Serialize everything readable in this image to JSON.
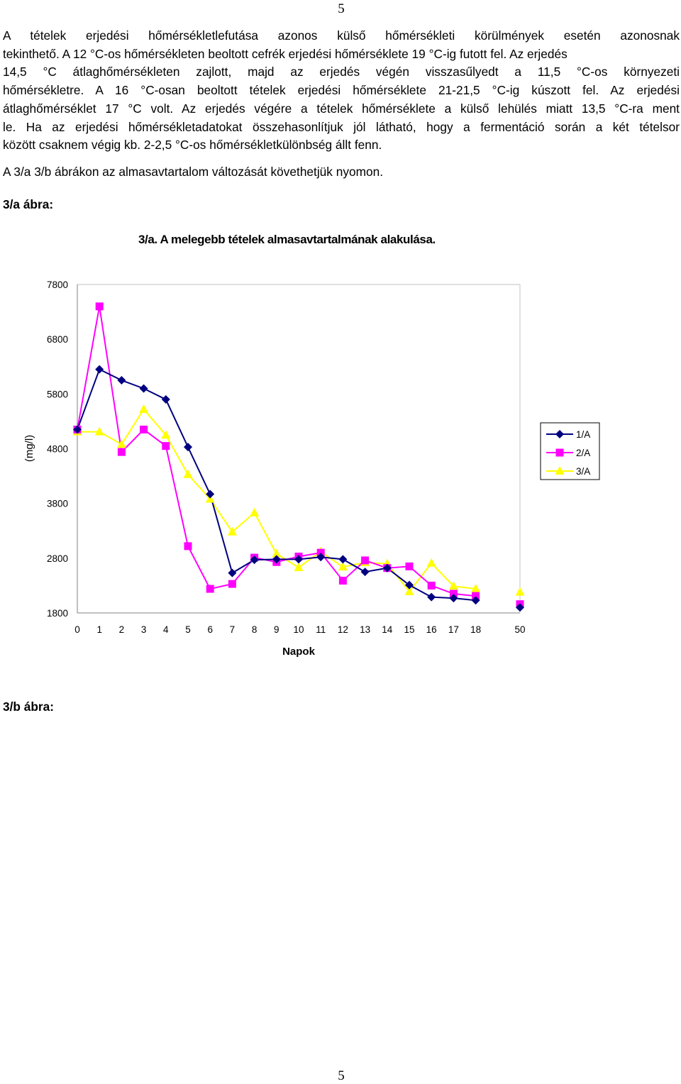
{
  "page": {
    "number_top": "5",
    "number_bottom": "5"
  },
  "paragraph1": {
    "lines": [
      "A tételek erjedési hőmérsékletlefutása azonos külső hőmérsékleti körülmények esetén azonosnak",
      "tekinthető. A 12 °C-os hőmérsékleten beoltott cefrék erjedési hőmérséklete 19 °C-ig futott fel. Az erjedés",
      "14,5 °C átlaghőmérsékleten zajlott, majd az erjedés végén visszasűlyedt a 11,5 °C-os környezeti",
      "hőmérsékletre. A 16 °C-osan beoltott tételek erjedési hőmérséklete 21-21,5 °C-ig kúszott fel. Az erjedési",
      "átlaghőmérséklet 17 °C volt. Az erjedés végére a tételek hőmérséklete a külső lehülés miatt 13,5 °C-ra ment",
      "le. Ha az erjedési hőmérsékletadatokat összehasonlítjuk jól látható, hogy a fermentáció során a két tételsor",
      "között csaknem végig kb. 2-2,5 °C-os hőmérsékletkülönbség állt fenn."
    ]
  },
  "paragraph2": "A 3/a 3/b ábrákon az almasavtartalom változását követhetjük nyomon.",
  "heading_3a": "3/a ábra:",
  "heading_3b": "3/b ábra:",
  "chart_data": {
    "type": "line",
    "title": "3/a. A melegebb tételek almasavtartalmának alakulása.",
    "xlabel": "Napok",
    "ylabel": "(mg/l)",
    "categories": [
      "0",
      "1",
      "2",
      "3",
      "4",
      "5",
      "6",
      "7",
      "8",
      "9",
      "10",
      "11",
      "12",
      "13",
      "14",
      "15",
      "16",
      "17",
      "18",
      "50"
    ],
    "ylim": [
      1800,
      7800
    ],
    "yticks": [
      "7800",
      "6800",
      "5800",
      "4800",
      "3800",
      "2800",
      "1800"
    ],
    "legend_position": "right",
    "grid": false,
    "series": [
      {
        "name": "1/A",
        "color": "#000080",
        "marker": "diamond",
        "values": [
          5150,
          6250,
          6050,
          5900,
          5700,
          4830,
          3970,
          2530,
          2770,
          2780,
          2780,
          2820,
          2780,
          2550,
          2620,
          2310,
          2090,
          2070,
          2030,
          1900
        ]
      },
      {
        "name": "2/A",
        "color": "#ff00ff",
        "marker": "square",
        "values": [
          5150,
          7400,
          4740,
          5150,
          4850,
          3020,
          2240,
          2330,
          2810,
          2730,
          2830,
          2900,
          2390,
          2760,
          2620,
          2650,
          2300,
          2150,
          2110,
          1960
        ]
      },
      {
        "name": "3/A",
        "color": "#ffff00",
        "marker": "triangle",
        "values": [
          5110,
          5110,
          4880,
          5520,
          5050,
          4330,
          3880,
          3280,
          3630,
          2880,
          2630,
          2920,
          2640,
          2720,
          2700,
          2190,
          2710,
          2290,
          2240,
          2180
        ]
      }
    ]
  }
}
